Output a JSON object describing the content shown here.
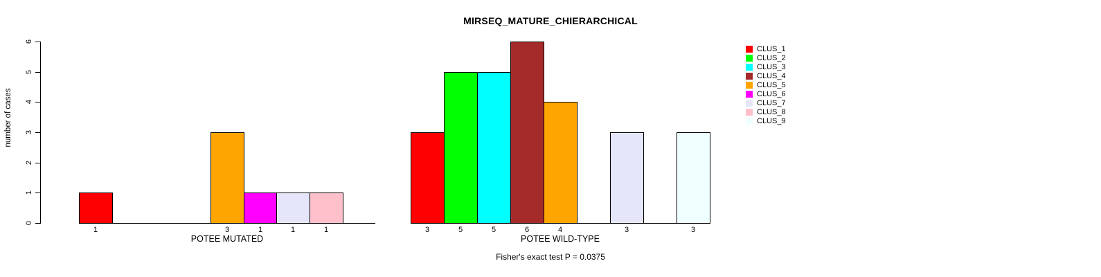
{
  "title": "MIRSEQ_MATURE_CHIERARCHICAL",
  "footer": "Fisher's exact test P = 0.0375",
  "chart_data": {
    "type": "bar",
    "title": "MIRSEQ_MATURE_CHIERARCHICAL",
    "ylabel": "number of cases",
    "xlabel": "",
    "ylim": [
      0,
      6
    ],
    "yticks": [
      0,
      1,
      2,
      3,
      4,
      5,
      6
    ],
    "grid": false,
    "legend_position": "right",
    "annotation": "Fisher's exact test P = 0.0375",
    "clusters": [
      {
        "name": "CLUS_1",
        "color": "#FF0000"
      },
      {
        "name": "CLUS_2",
        "color": "#00FF00"
      },
      {
        "name": "CLUS_3",
        "color": "#00FFFF"
      },
      {
        "name": "CLUS_4",
        "color": "#A52A2A"
      },
      {
        "name": "CLUS_5",
        "color": "#FFA500"
      },
      {
        "name": "CLUS_6",
        "color": "#FF00FF"
      },
      {
        "name": "CLUS_7",
        "color": "#E6E6FA"
      },
      {
        "name": "CLUS_8",
        "color": "#FFC0CB"
      },
      {
        "name": "CLUS_9",
        "color": "#F0FFFF"
      }
    ],
    "groups": [
      {
        "label": "POTEE MUTATED",
        "values": [
          1,
          0,
          0,
          0,
          3,
          1,
          1,
          1,
          0
        ]
      },
      {
        "label": "POTEE WILD-TYPE",
        "values": [
          3,
          5,
          5,
          6,
          4,
          0,
          3,
          0,
          3
        ]
      }
    ],
    "bar_border_color": "#000000",
    "axis_color": "#000000"
  }
}
